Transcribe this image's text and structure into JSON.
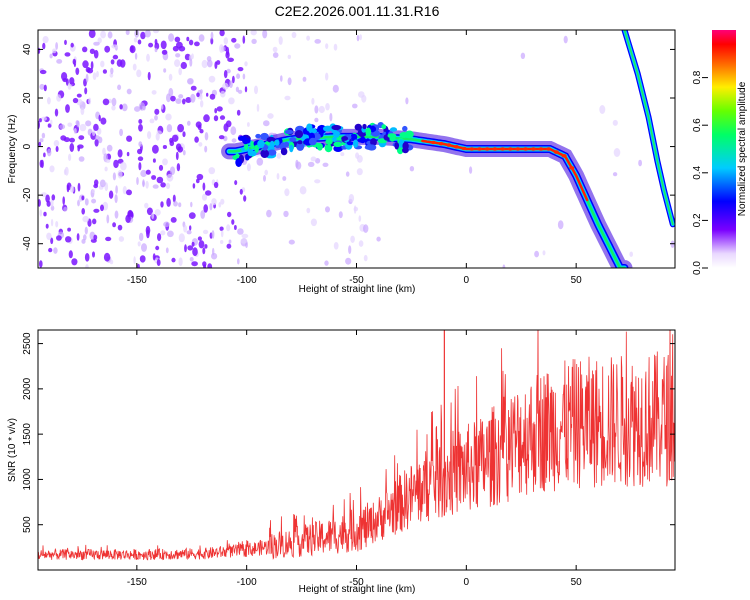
{
  "title": "C2E2.2026.001.11.31.R16",
  "chart_data": [
    {
      "type": "heatmap",
      "name": "spectrogram",
      "xlabel": "Height of straight line (km)",
      "ylabel": "Frequency (Hz)",
      "xlim": [
        -195,
        95
      ],
      "ylim": [
        -50,
        48
      ],
      "xticks": [
        -150,
        -100,
        -50,
        0,
        50
      ],
      "yticks": [
        -40,
        -20,
        0,
        20,
        40
      ],
      "ridge_points": [
        {
          "x": -105,
          "y": -2
        },
        {
          "x": -80,
          "y": 3
        },
        {
          "x": -60,
          "y": 4
        },
        {
          "x": -40,
          "y": 4
        },
        {
          "x": -25,
          "y": 3
        },
        {
          "x": -10,
          "y": 1
        },
        {
          "x": 0,
          "y": -1
        },
        {
          "x": 20,
          "y": -1
        },
        {
          "x": 38,
          "y": -1
        },
        {
          "x": 45,
          "y": -4
        },
        {
          "x": 50,
          "y": -12
        },
        {
          "x": 55,
          "y": -22
        },
        {
          "x": 60,
          "y": -32
        },
        {
          "x": 65,
          "y": -41
        },
        {
          "x": 70,
          "y": -50
        }
      ],
      "secondary_line": [
        {
          "x": 72,
          "y": 48
        },
        {
          "x": 78,
          "y": 30
        },
        {
          "x": 83,
          "y": 12
        },
        {
          "x": 87,
          "y": -6
        },
        {
          "x": 90,
          "y": -18
        },
        {
          "x": 94,
          "y": -32
        }
      ],
      "colorbar": {
        "label": "Normalized spectral amplitude",
        "range": [
          0,
          1
        ],
        "ticks": [
          "0.0",
          "0.2",
          "0.4",
          "0.6",
          "0.8"
        ]
      }
    },
    {
      "type": "line",
      "name": "snr",
      "xlabel": "Height of straight line (km)",
      "ylabel": "SNR (10 * v/v)",
      "xlim": [
        -195,
        95
      ],
      "ylim": [
        0,
        2650
      ],
      "xticks": [
        -150,
        -100,
        -50,
        0,
        50
      ],
      "yticks": [
        500,
        1000,
        1500,
        2000,
        2500
      ],
      "color": "#ee3333",
      "envelope": [
        {
          "x": -195,
          "y": 170
        },
        {
          "x": -150,
          "y": 170
        },
        {
          "x": -120,
          "y": 180
        },
        {
          "x": -100,
          "y": 220
        },
        {
          "x": -80,
          "y": 300
        },
        {
          "x": -60,
          "y": 380
        },
        {
          "x": -45,
          "y": 480
        },
        {
          "x": -35,
          "y": 650
        },
        {
          "x": -25,
          "y": 820
        },
        {
          "x": -15,
          "y": 980
        },
        {
          "x": -5,
          "y": 1080
        },
        {
          "x": 5,
          "y": 1150
        },
        {
          "x": 15,
          "y": 1300
        },
        {
          "x": 25,
          "y": 1450
        },
        {
          "x": 35,
          "y": 1550
        },
        {
          "x": 50,
          "y": 1620
        },
        {
          "x": 70,
          "y": 1650
        },
        {
          "x": 95,
          "y": 1680
        }
      ],
      "spike": {
        "x": -10,
        "y": 2650
      }
    }
  ]
}
